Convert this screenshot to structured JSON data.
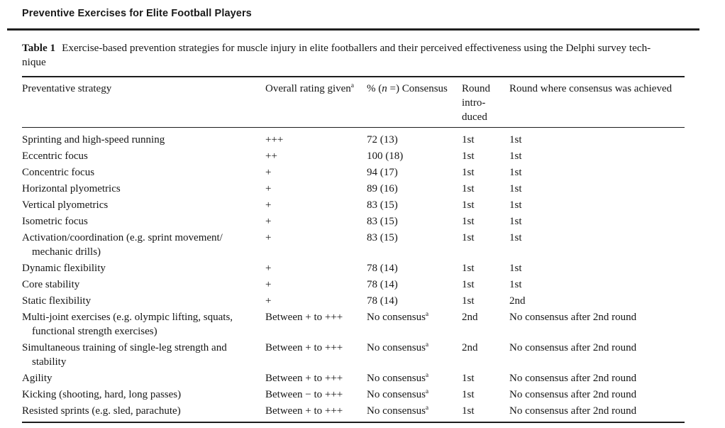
{
  "page": {
    "running_head": "Preventive Exercises for Elite Football Players"
  },
  "caption": {
    "label": "Table 1",
    "text": "Exercise-based prevention strategies for muscle injury in elite footballers and their perceived effectiveness using the Delphi survey tech-\nnique"
  },
  "table": {
    "columns": {
      "strategy": "Preventative strategy",
      "rating": "Overall rating given",
      "rating_sup": "a",
      "consensus_prefix": "% (",
      "consensus_n": "n",
      "consensus_suffix": " =) Consensus",
      "round_introduced": "Round\nintro-\nduced",
      "round_achieved": "Round where consensus was achieved"
    },
    "rows": [
      {
        "strategy": "Sprinting and high-speed running",
        "strategy2": "",
        "rating": "+++",
        "consensus": "72 (13)",
        "consensus_sup": "",
        "round_introduced": "1st",
        "round_achieved": "1st"
      },
      {
        "strategy": "Eccentric focus",
        "strategy2": "",
        "rating": "++",
        "consensus": "100 (18)",
        "consensus_sup": "",
        "round_introduced": "1st",
        "round_achieved": "1st"
      },
      {
        "strategy": "Concentric focus",
        "strategy2": "",
        "rating": "+",
        "consensus": "94 (17)",
        "consensus_sup": "",
        "round_introduced": "1st",
        "round_achieved": "1st"
      },
      {
        "strategy": "Horizontal plyometrics",
        "strategy2": "",
        "rating": "+",
        "consensus": "89 (16)",
        "consensus_sup": "",
        "round_introduced": "1st",
        "round_achieved": "1st"
      },
      {
        "strategy": "Vertical plyometrics",
        "strategy2": "",
        "rating": "+",
        "consensus": "83 (15)",
        "consensus_sup": "",
        "round_introduced": "1st",
        "round_achieved": "1st"
      },
      {
        "strategy": "Isometric focus",
        "strategy2": "",
        "rating": "+",
        "consensus": "83 (15)",
        "consensus_sup": "",
        "round_introduced": "1st",
        "round_achieved": "1st"
      },
      {
        "strategy": "Activation/coordination (e.g. sprint movement/",
        "strategy2": "mechanic drills)",
        "rating": "+",
        "consensus": "83 (15)",
        "consensus_sup": "",
        "round_introduced": "1st",
        "round_achieved": "1st"
      },
      {
        "strategy": "Dynamic flexibility",
        "strategy2": "",
        "rating": "+",
        "consensus": "78 (14)",
        "consensus_sup": "",
        "round_introduced": "1st",
        "round_achieved": "1st"
      },
      {
        "strategy": "Core stability",
        "strategy2": "",
        "rating": "+",
        "consensus": "78 (14)",
        "consensus_sup": "",
        "round_introduced": "1st",
        "round_achieved": "1st"
      },
      {
        "strategy": "Static flexibility",
        "strategy2": "",
        "rating": "+",
        "consensus": "78 (14)",
        "consensus_sup": "",
        "round_introduced": "1st",
        "round_achieved": "2nd"
      },
      {
        "strategy": "Multi-joint exercises (e.g. olympic lifting, squats,",
        "strategy2": "functional strength exercises)",
        "rating": "Between + to +++",
        "consensus": "No consensus",
        "consensus_sup": "a",
        "round_introduced": "2nd",
        "round_achieved": "No consensus after 2nd round"
      },
      {
        "strategy": "Simultaneous training of single-leg strength and",
        "strategy2": "stability",
        "rating": "Between + to +++",
        "consensus": "No consensus",
        "consensus_sup": "a",
        "round_introduced": "2nd",
        "round_achieved": "No consensus after 2nd round"
      },
      {
        "strategy": "Agility",
        "strategy2": "",
        "rating": "Between + to +++",
        "consensus": "No consensus",
        "consensus_sup": "a",
        "round_introduced": "1st",
        "round_achieved": "No consensus after 2nd round"
      },
      {
        "strategy": "Kicking (shooting, hard, long passes)",
        "strategy2": "",
        "rating": "Between − to +++",
        "consensus": "No consensus",
        "consensus_sup": "a",
        "round_introduced": "1st",
        "round_achieved": "No consensus after 2nd round"
      },
      {
        "strategy": "Resisted sprints (e.g. sled, parachute)",
        "strategy2": "",
        "rating": "Between + to +++",
        "consensus": "No consensus",
        "consensus_sup": "a",
        "round_introduced": "1st",
        "round_achieved": "No consensus after 2nd round"
      }
    ]
  }
}
